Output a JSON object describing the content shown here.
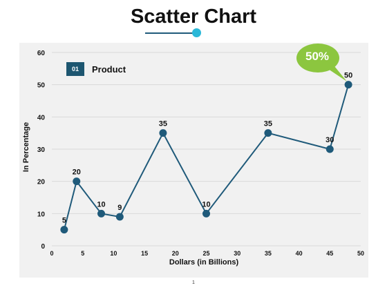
{
  "title": "Scatter Chart",
  "callout": "50%",
  "page_number": "1",
  "legend": {
    "badge": "01",
    "label": "Product"
  },
  "colors": {
    "series": "#1f5a7a",
    "accent": "#2bb8d8",
    "callout": "#8cc63f",
    "badge": "#1d5670"
  },
  "chart_data": {
    "type": "scatter",
    "xlabel": "Dollars (in Billions)",
    "ylabel": "In Percentage",
    "xlim": [
      0,
      50
    ],
    "ylim": [
      0,
      60
    ],
    "xticks": [
      0,
      5,
      10,
      15,
      20,
      25,
      30,
      35,
      40,
      45,
      50
    ],
    "yticks": [
      0,
      10,
      20,
      30,
      40,
      50,
      60
    ],
    "grid": true,
    "legend": "top-left",
    "series": [
      {
        "name": "Product",
        "points": [
          {
            "x": 2,
            "y": 5,
            "label": "5"
          },
          {
            "x": 4,
            "y": 20,
            "label": "20"
          },
          {
            "x": 8,
            "y": 10,
            "label": "10"
          },
          {
            "x": 11,
            "y": 9,
            "label": "9"
          },
          {
            "x": 18,
            "y": 35,
            "label": "35"
          },
          {
            "x": 25,
            "y": 10,
            "label": "10"
          },
          {
            "x": 35,
            "y": 35,
            "label": "35"
          },
          {
            "x": 45,
            "y": 30,
            "label": "30"
          },
          {
            "x": 48,
            "y": 50,
            "label": "50"
          }
        ]
      }
    ]
  }
}
